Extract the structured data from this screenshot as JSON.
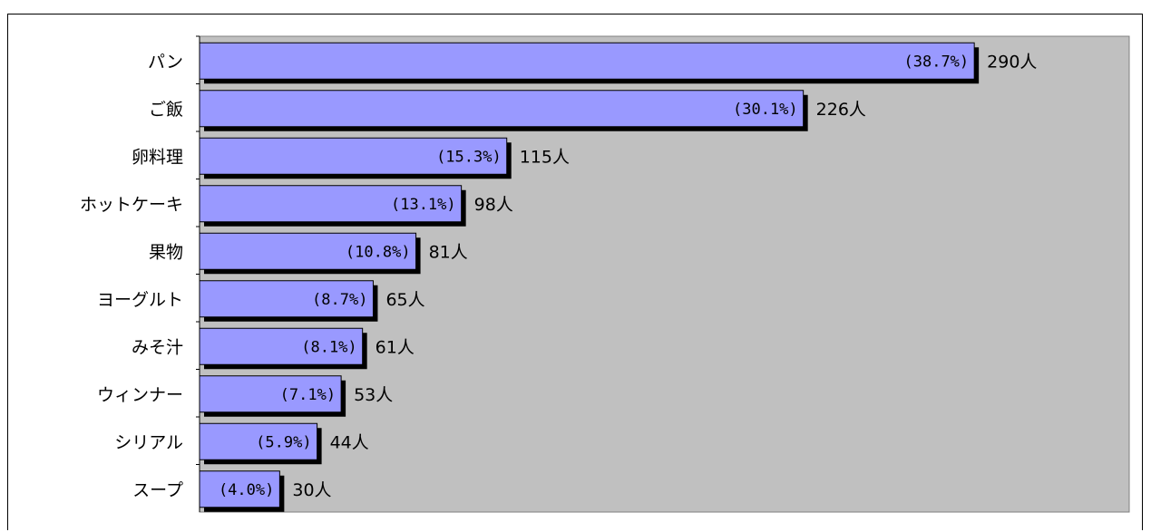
{
  "chart_data": {
    "type": "bar",
    "orientation": "horizontal",
    "categories": [
      "パン",
      "ご飯",
      "卵料理",
      "ホットケーキ",
      "果物",
      "ヨーグルト",
      "みそ汁",
      "ウィンナー",
      "シリアル",
      "スープ"
    ],
    "values": [
      290,
      226,
      115,
      98,
      81,
      65,
      61,
      53,
      44,
      30
    ],
    "value_labels": [
      "290人",
      "226人",
      "115人",
      "98人",
      "81人",
      "65人",
      "61人",
      "53人",
      "44人",
      "30人"
    ],
    "percent_labels": [
      "(38.7%)",
      "(30.1%)",
      "(15.3%)",
      "(13.1%)",
      "(10.8%)",
      "(8.7%)",
      "(8.1%)",
      "(7.1%)",
      "(5.9%)",
      "(4.0%)"
    ],
    "xlim": [
      0,
      348
    ],
    "grid": false,
    "colors": {
      "bar": "#9999ff",
      "bar_shadow": "#000000",
      "plot_background": "#c0c0c0",
      "page_background": "#ffffff"
    }
  }
}
